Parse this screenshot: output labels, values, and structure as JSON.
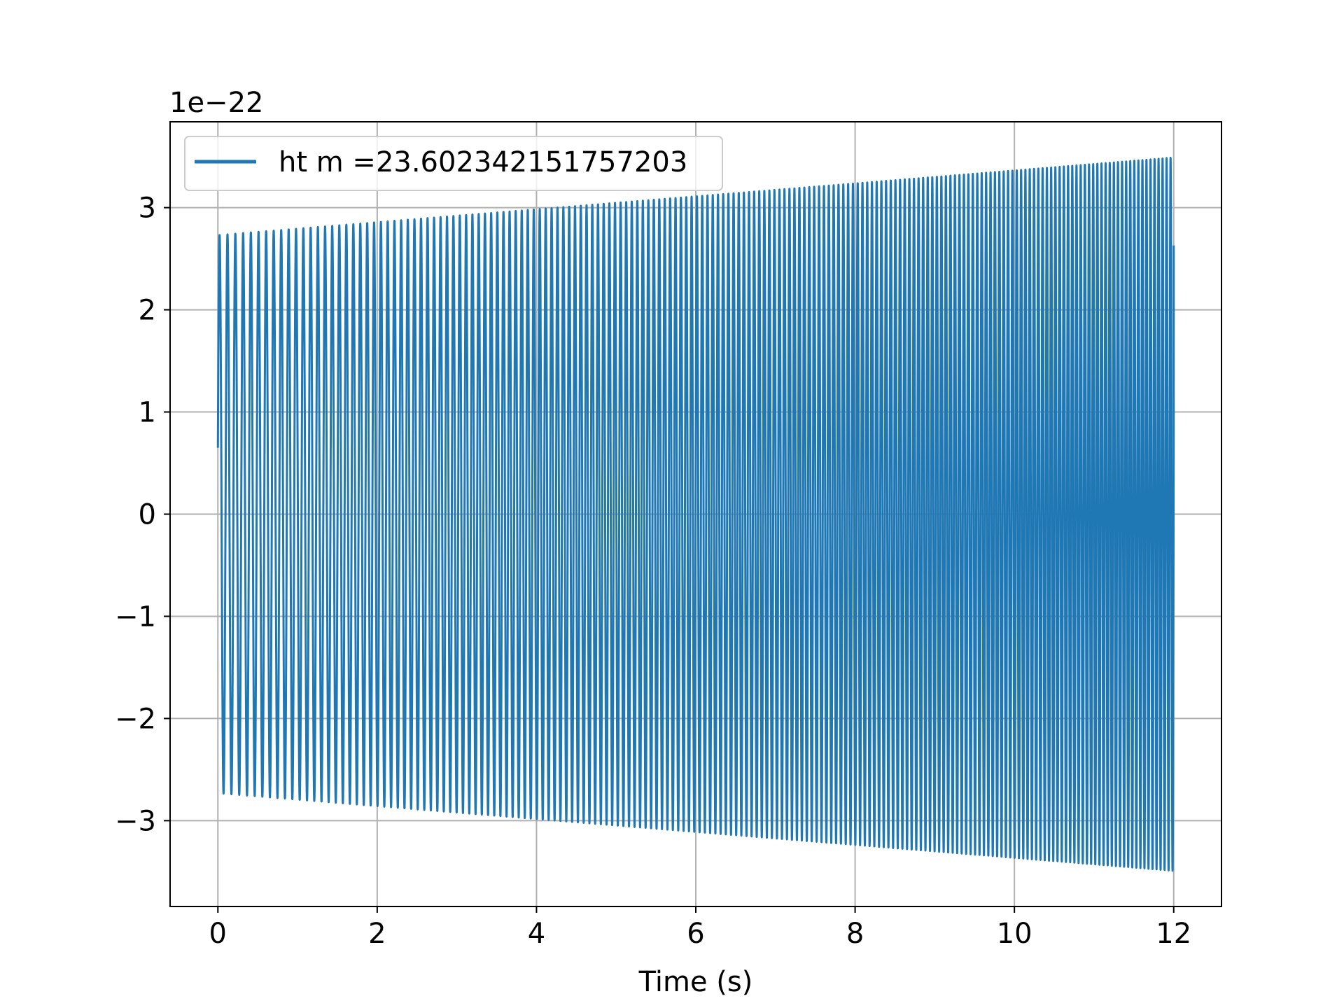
{
  "chart_data": {
    "type": "line",
    "title": "",
    "xlabel": "Time (s)",
    "ylabel": "",
    "y_offset_label": "1e−22",
    "xlim": [
      -0.6,
      12.6
    ],
    "ylim": [
      -3.84,
      3.84
    ],
    "y_scale_factor": 1e-22,
    "x_ticks": [
      {
        "value": 0,
        "label": "0"
      },
      {
        "value": 2,
        "label": "2"
      },
      {
        "value": 4,
        "label": "4"
      },
      {
        "value": 6,
        "label": "6"
      },
      {
        "value": 8,
        "label": "8"
      },
      {
        "value": 10,
        "label": "10"
      },
      {
        "value": 12,
        "label": "12"
      }
    ],
    "y_ticks": [
      {
        "value": -3,
        "label": "−3"
      },
      {
        "value": -2,
        "label": "−2"
      },
      {
        "value": -1,
        "label": "−1"
      },
      {
        "value": 0,
        "label": "0"
      },
      {
        "value": 1,
        "label": "1"
      },
      {
        "value": 2,
        "label": "2"
      },
      {
        "value": 3,
        "label": "3"
      }
    ],
    "grid": true,
    "legend_position": "upper left",
    "series": [
      {
        "name": "ht m =23.602342151757203",
        "color": "#1f77b4",
        "signal": {
          "t_start": 0.0,
          "t_end": 12.0,
          "amplitude_start": 2.73,
          "amplitude_end": 3.49,
          "frequency_start_hz": 10.0,
          "frequency_end_hz": 20.0,
          "start_value": 0.65,
          "end_value": 2.63
        }
      }
    ]
  },
  "colors": {
    "grid": "#b0b0b0",
    "axes": "#000000",
    "background": "#ffffff",
    "legend_border": "#cccccc"
  }
}
